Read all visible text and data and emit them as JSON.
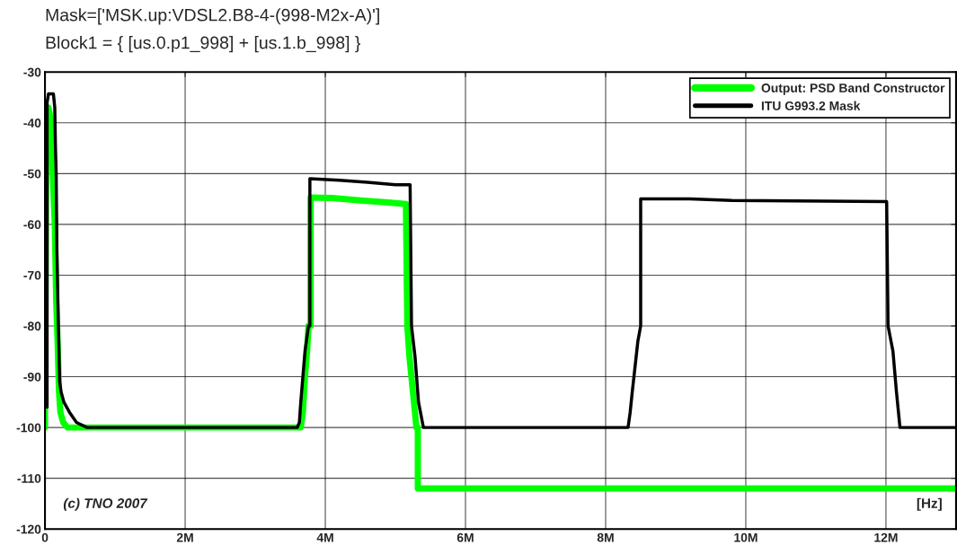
{
  "chart_data": {
    "type": "line",
    "title": "Mask=['MSK.up:VDSL2.B8-4-(998-M2x-A)']",
    "subtitle": "Block1 = { [us.0.p1_998] + [us.1.b_998] }",
    "annotations": [
      "(c) TNO 2007",
      "[Hz]"
    ],
    "series": [
      {
        "name": "Output: PSD Band Constructor",
        "color": "#00ff00",
        "x": [
          0,
          0,
          20000,
          50000,
          90000,
          110000,
          140000,
          160000,
          180000,
          200000,
          220000,
          260000,
          320000,
          400000,
          3650000,
          3680000,
          3710000,
          3740000,
          3760000,
          3790000,
          3790000,
          4100000,
          4500000,
          4900000,
          5150000,
          5170000,
          5200000,
          5250000,
          5300000,
          5320000,
          5320000,
          13000000
        ],
        "values": [
          -100,
          -97,
          -40,
          -37,
          -40,
          -50,
          -60,
          -75,
          -83,
          -93,
          -97,
          -99,
          -100,
          -100,
          -100,
          -97,
          -90,
          -85,
          -80,
          -80,
          -54.7,
          -54.8,
          -55.3,
          -55.7,
          -56,
          -80,
          -86,
          -93,
          -100,
          -100,
          -112,
          -112
        ]
      },
      {
        "name": "ITU G993.2 Mask",
        "color": "#000000",
        "x": [
          30000,
          30000,
          50000,
          120000,
          140000,
          150000,
          160000,
          170000,
          190000,
          210000,
          230000,
          270000,
          350000,
          450000,
          600000,
          3600000,
          3630000,
          3650000,
          3680000,
          3710000,
          3740000,
          3760000,
          3780000,
          3780000,
          4200000,
          4600000,
          5000000,
          5210000,
          5230000,
          5280000,
          5330000,
          5400000,
          8320000,
          8350000,
          8380000,
          8420000,
          8460000,
          8500000,
          8500000,
          9200000,
          9800000,
          12010000,
          12030000,
          12100000,
          12150000,
          12200000,
          13000000
        ],
        "values": [
          -96,
          -36,
          -34.3,
          -34.3,
          -37,
          -45,
          -50,
          -65,
          -79,
          -91,
          -93,
          -95,
          -97,
          -99,
          -100,
          -100,
          -99,
          -95,
          -90,
          -85,
          -82,
          -80,
          -80,
          -51,
          -51.3,
          -51.7,
          -52.2,
          -52.2,
          -80,
          -86,
          -95,
          -100,
          -100,
          -97,
          -93,
          -88,
          -83,
          -80,
          -55,
          -55,
          -55.3,
          -55.5,
          -80,
          -85,
          -93,
          -100,
          -100
        ]
      }
    ],
    "xlim": [
      0,
      13000000
    ],
    "xticks": [
      0,
      {
        "value": 2000000,
        "label": "2M"
      },
      {
        "value": 4000000,
        "label": "4M"
      },
      {
        "value": 6000000,
        "label": "6M"
      },
      {
        "value": 8000000,
        "label": "8M"
      },
      {
        "value": 10000000,
        "label": "10M"
      },
      {
        "value": 12000000,
        "label": "12M"
      }
    ],
    "ylim": [
      -120,
      -30
    ],
    "yticks": [
      -120,
      -110,
      -100,
      -90,
      -80,
      -70,
      -60,
      -50,
      -40,
      -30
    ],
    "grid": true,
    "legend": "top right"
  }
}
